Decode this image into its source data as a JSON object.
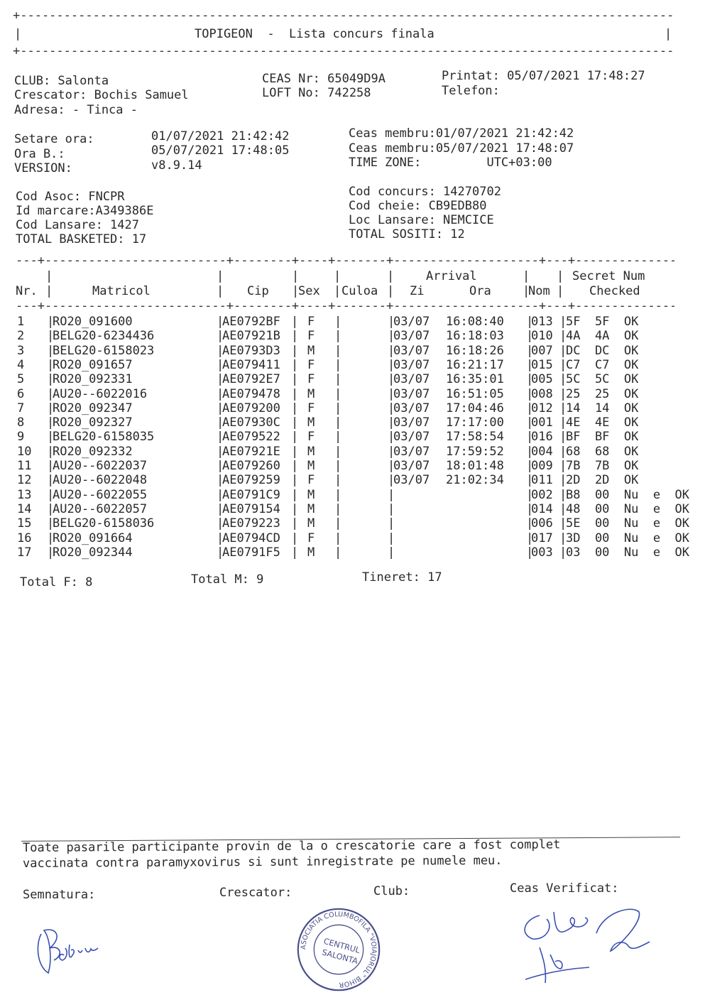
{
  "title": "TOPIGEON  -  Lista concurs finala",
  "header": {
    "club": "CLUB: Salonta",
    "crescator": "Crescator: Bochis Samuel",
    "adresa": "Adresa: - Tinca -",
    "ceas_nr": "CEAS Nr: 65049D9A",
    "loft_no": "LOFT No: 742258",
    "printat": "Printat: 05/07/2021 17:48:27",
    "telefon": "Telefon:",
    "setare_ora_label": "Setare ora:",
    "setare_ora_value": "01/07/2021 21:42:42",
    "ora_b_label": "Ora B.:",
    "ora_b_value": "05/07/2021 17:48:05",
    "version_label": "VERSION:",
    "version_value": "v8.9.14",
    "ceas_membru_1": "Ceas membru:01/07/2021 21:42:42",
    "ceas_membru_2": "Ceas membru:05/07/2021 17:48:07",
    "time_zone": "TIME ZONE:         UTC+03:00",
    "cod_asoc": "Cod Asoc: FNCPR",
    "id_marcare": "Id marcare:A349386E",
    "cod_lansare": "Cod Lansare: 1427",
    "total_basketed": "TOTAL BASKETED: 17",
    "cod_concurs": "Cod concurs: 14270702",
    "cod_cheie": "Cod cheie: CB9EDB80",
    "loc_lansare": "Loc Lansare: NEMCICE",
    "total_sositi": "TOTAL SOSITI: 12"
  },
  "table": {
    "headers": {
      "nr": "Nr.",
      "matricol": "Matricol",
      "cip": "Cip",
      "sex": "Sex",
      "culoa": "Culoa",
      "arrival": "Arrival",
      "zi": "Zi",
      "ora": "Ora",
      "nom": "Nom",
      "secret_num": "Secret Num",
      "checked": "Checked"
    },
    "rows": [
      {
        "nr": "1",
        "matricol": "RO20_091600",
        "cip": "AE0792BF",
        "sex": "F",
        "zi": "03/07",
        "ora": "16:08:40",
        "nom": "013",
        "secret": "5F  5F  OK"
      },
      {
        "nr": "2",
        "matricol": "BELG20-6234436",
        "cip": "AE07921B",
        "sex": "F",
        "zi": "03/07",
        "ora": "16:18:03",
        "nom": "010",
        "secret": "4A  4A  OK"
      },
      {
        "nr": "3",
        "matricol": "BELG20-6158023",
        "cip": "AE0793D3",
        "sex": "M",
        "zi": "03/07",
        "ora": "16:18:26",
        "nom": "007",
        "secret": "DC  DC  OK"
      },
      {
        "nr": "4",
        "matricol": "RO20_091657",
        "cip": "AE079411",
        "sex": "F",
        "zi": "03/07",
        "ora": "16:21:17",
        "nom": "015",
        "secret": "C7  C7  OK"
      },
      {
        "nr": "5",
        "matricol": "RO20_092331",
        "cip": "AE0792E7",
        "sex": "F",
        "zi": "03/07",
        "ora": "16:35:01",
        "nom": "005",
        "secret": "5C  5C  OK"
      },
      {
        "nr": "6",
        "matricol": "AU20--6022016",
        "cip": "AE079478",
        "sex": "M",
        "zi": "03/07",
        "ora": "16:51:05",
        "nom": "008",
        "secret": "25  25  OK"
      },
      {
        "nr": "7",
        "matricol": "RO20_092347",
        "cip": "AE079200",
        "sex": "F",
        "zi": "03/07",
        "ora": "17:04:46",
        "nom": "012",
        "secret": "14  14  OK"
      },
      {
        "nr": "8",
        "matricol": "RO20_092327",
        "cip": "AE07930C",
        "sex": "M",
        "zi": "03/07",
        "ora": "17:17:00",
        "nom": "001",
        "secret": "4E  4E  OK"
      },
      {
        "nr": "9",
        "matricol": "BELG20-6158035",
        "cip": "AE079522",
        "sex": "F",
        "zi": "03/07",
        "ora": "17:58:54",
        "nom": "016",
        "secret": "BF  BF  OK"
      },
      {
        "nr": "10",
        "matricol": "RO20_092332",
        "cip": "AE07921E",
        "sex": "M",
        "zi": "03/07",
        "ora": "17:59:52",
        "nom": "004",
        "secret": "68  68  OK"
      },
      {
        "nr": "11",
        "matricol": "AU20--6022037",
        "cip": "AE079260",
        "sex": "M",
        "zi": "03/07",
        "ora": "18:01:48",
        "nom": "009",
        "secret": "7B  7B  OK"
      },
      {
        "nr": "12",
        "matricol": "AU20--6022048",
        "cip": "AE079259",
        "sex": "F",
        "zi": "03/07",
        "ora": "21:02:34",
        "nom": "011",
        "secret": "2D  2D  OK"
      },
      {
        "nr": "13",
        "matricol": "AU20--6022055",
        "cip": "AE0791C9",
        "sex": "M",
        "zi": "",
        "ora": "",
        "nom": "002",
        "secret": "B8  00  Nu  e  OK"
      },
      {
        "nr": "14",
        "matricol": "AU20--6022057",
        "cip": "AE079154",
        "sex": "M",
        "zi": "",
        "ora": "",
        "nom": "014",
        "secret": "48  00  Nu  e  OK"
      },
      {
        "nr": "15",
        "matricol": "BELG20-6158036",
        "cip": "AE079223",
        "sex": "M",
        "zi": "",
        "ora": "",
        "nom": "006",
        "secret": "5E  00  Nu  e  OK"
      },
      {
        "nr": "16",
        "matricol": "RO20_091664",
        "cip": "AE0794CD",
        "sex": "F",
        "zi": "",
        "ora": "",
        "nom": "017",
        "secret": "3D  00  Nu  e  OK"
      },
      {
        "nr": "17",
        "matricol": "RO20_092344",
        "cip": "AE0791F5",
        "sex": "M",
        "zi": "",
        "ora": "",
        "nom": "003",
        "secret": "03  00  Nu  e  OK"
      }
    ]
  },
  "totals": {
    "total_f": "Total F: 8",
    "total_m": "Total M: 9",
    "tineret": "Tineret: 17"
  },
  "footer": {
    "declaration_1": "Toate pasarile participante provin de la o crescatorie care a fost complet",
    "declaration_2": "vaccinata contra paramyxovirus si sunt inregistrate pe numele meu.",
    "semnatura": "Semnatura:",
    "crescator": "Crescator:",
    "club": "Club:",
    "ceas_verificat": "Ceas Verificat:",
    "stamp_text": "ASOCIATIA COLUMBOFILA \"VOIAJORUL\" BIHOR - CENTRUL SALONTA"
  },
  "colors": {
    "ink": "#2a2a2a",
    "signature": "#3a4fb0",
    "stamp": "#4a4f8a"
  }
}
